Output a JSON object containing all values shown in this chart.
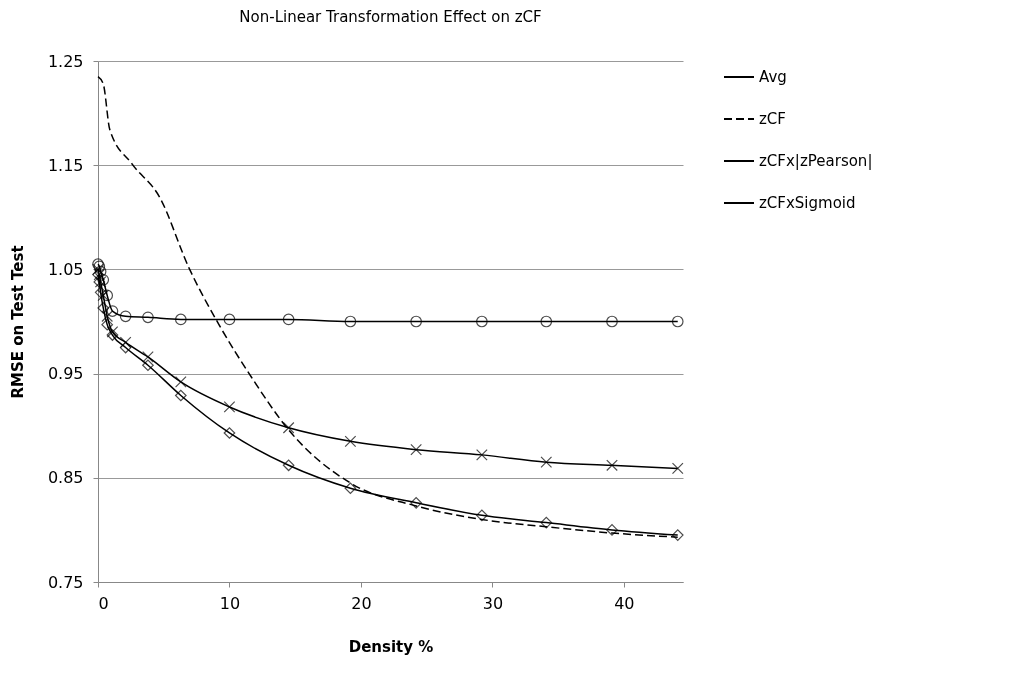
{
  "chart_data": {
    "type": "line",
    "title": "Non-Linear Transformation Effect on zCF",
    "xlabel": "Density %",
    "ylabel": "RMSE on Test Test",
    "xlim": [
      0,
      44.5
    ],
    "xticks": [
      0,
      10,
      20,
      30,
      40
    ],
    "ylim": [
      0.75,
      1.25
    ],
    "yticks": [
      0.75,
      0.85,
      0.95,
      1.05,
      1.15,
      1.25
    ],
    "grid": "y",
    "legend": "right",
    "series": [
      {
        "name": "Avg",
        "color": "#000000",
        "marker": "circle",
        "line_style": "solid",
        "x": [
          0,
          0.1,
          0.2,
          0.4,
          0.7,
          1.1,
          2.1,
          3.8,
          6.3,
          10.0,
          14.5,
          19.2,
          24.2,
          29.2,
          34.1,
          39.1,
          44.1
        ],
        "values": [
          1.055,
          1.053,
          1.048,
          1.04,
          1.025,
          1.01,
          1.005,
          1.004,
          1.002,
          1.002,
          1.002,
          1.0,
          1.0,
          1.0,
          1.0,
          1.0,
          1.0
        ]
      },
      {
        "name": "zCF",
        "color": "#000000",
        "marker": "none",
        "line_style": "dashed",
        "x": [
          0,
          0.4,
          0.9,
          2.6,
          4.7,
          6.9,
          9.2,
          11.7,
          14.5,
          19.2,
          24.2,
          29.2,
          34.1,
          39.1,
          44.1
        ],
        "values": [
          1.235,
          1.228,
          1.184,
          1.151,
          1.119,
          1.052,
          0.997,
          0.946,
          0.896,
          0.845,
          0.823,
          0.81,
          0.803,
          0.797,
          0.793
        ]
      },
      {
        "name": "zCFx|zPearson|",
        "color": "#000000",
        "marker": "cross",
        "line_style": "solid",
        "x": [
          0,
          0.1,
          0.2,
          0.4,
          0.7,
          1.1,
          2.1,
          3.8,
          6.3,
          10.0,
          14.5,
          19.2,
          24.2,
          29.2,
          34.1,
          39.1,
          44.1
        ],
        "values": [
          1.05,
          1.045,
          1.038,
          1.025,
          1.005,
          0.99,
          0.98,
          0.966,
          0.942,
          0.918,
          0.898,
          0.885,
          0.877,
          0.872,
          0.865,
          0.862,
          0.859
        ]
      },
      {
        "name": "zCFxSigmoid",
        "color": "#000000",
        "marker": "diamond",
        "line_style": "solid",
        "x": [
          0,
          0.1,
          0.2,
          0.4,
          0.7,
          1.1,
          2.1,
          3.8,
          6.3,
          10.0,
          14.5,
          19.2,
          24.2,
          29.2,
          34.1,
          39.1,
          44.1
        ],
        "values": [
          1.045,
          1.038,
          1.028,
          1.013,
          0.997,
          0.987,
          0.975,
          0.958,
          0.929,
          0.893,
          0.862,
          0.84,
          0.826,
          0.814,
          0.807,
          0.8,
          0.795
        ]
      }
    ]
  }
}
